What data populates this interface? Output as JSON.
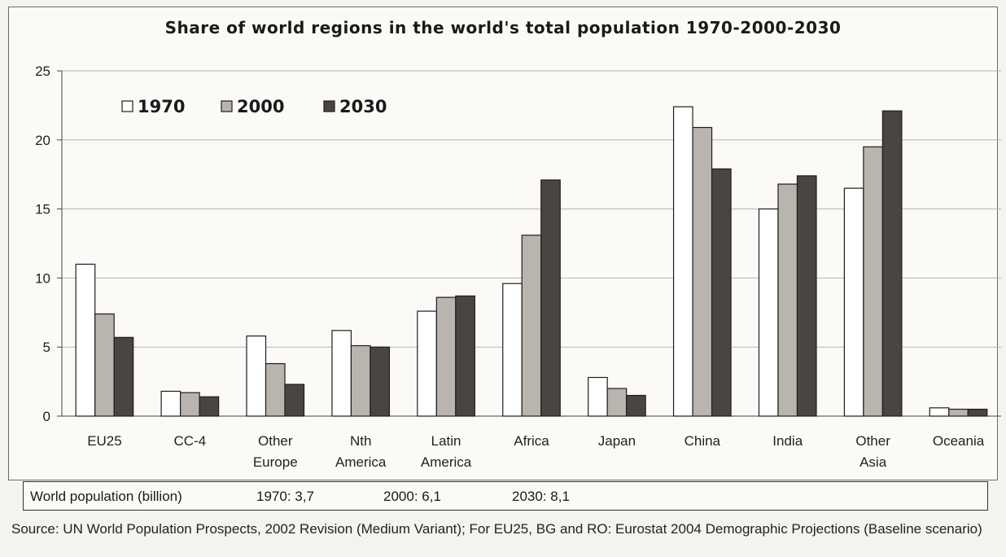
{
  "chart_data": {
    "type": "bar",
    "title": "Share of world regions in the world's total population 1970-2000-2030",
    "categories": [
      [
        "EU25"
      ],
      [
        "CC-4"
      ],
      [
        "Other",
        "Europe"
      ],
      [
        "Nth",
        "America"
      ],
      [
        "Latin",
        "America"
      ],
      [
        "Africa"
      ],
      [
        "Japan"
      ],
      [
        "China"
      ],
      [
        "India"
      ],
      [
        "Other",
        "Asia"
      ],
      [
        "Oceania"
      ]
    ],
    "series": [
      {
        "name": "1970",
        "color": "#ffffff",
        "values": [
          11.0,
          1.8,
          5.8,
          6.2,
          7.6,
          9.6,
          2.8,
          22.4,
          15.0,
          16.5,
          0.6
        ]
      },
      {
        "name": "2000",
        "color": "#b9b5ae",
        "values": [
          7.4,
          1.7,
          3.8,
          5.1,
          8.6,
          13.1,
          2.0,
          20.9,
          16.8,
          19.5,
          0.5
        ]
      },
      {
        "name": "2030",
        "color": "#4a4542",
        "values": [
          5.7,
          1.4,
          2.3,
          5.0,
          8.7,
          17.1,
          1.5,
          17.9,
          17.4,
          22.1,
          0.5
        ]
      }
    ],
    "yticks": [
      0,
      5,
      10,
      15,
      20,
      25
    ],
    "ylim": [
      0,
      25
    ],
    "grid": true,
    "legend": "top-left"
  },
  "world_population": {
    "label": "World population (billion)",
    "entries": [
      "1970:  3,7",
      "2000:  6,1",
      "2030:  8,1"
    ]
  },
  "source": "Source: UN World Population Prospects, 2002 Revision (Medium Variant); For EU25, BG and RO: Eurostat 2004 Demographic Projections (Baseline scenario)"
}
